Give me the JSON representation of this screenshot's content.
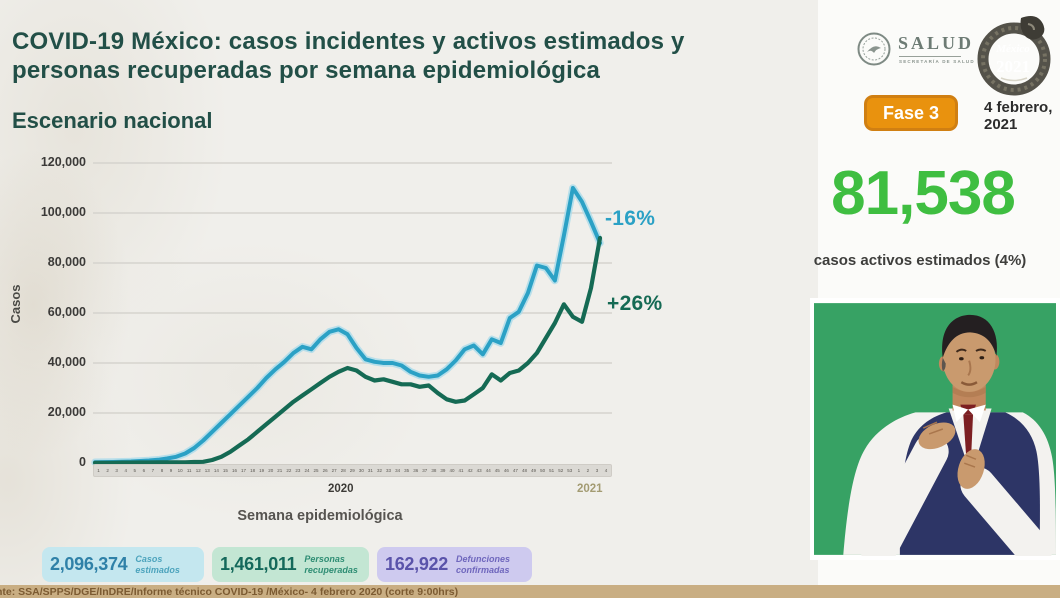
{
  "header": {
    "title_line1": "COVID-19 México: casos incidentes y activos estimados y",
    "title_line2": "personas recuperadas por semana epidemiológica",
    "subtitle": "Escenario nacional"
  },
  "top_right": {
    "salud_wordmark": "SALUD",
    "salud_subtext": "SECRETARÍA DE SALUD",
    "mexico_script": "México",
    "mexico_year": "2021",
    "fase_badge": "Fase 3",
    "date_line1": "4 febrero,",
    "date_line2": "2021"
  },
  "kpi": {
    "value": "81,538",
    "caption": "casos activos estimados (4%)",
    "value_color": "#3fbe41"
  },
  "chart_data": {
    "type": "line",
    "title": "COVID-19 México: casos incidentes y activos estimados y personas recuperadas por semana epidemiológica",
    "subtitle": "Escenario nacional",
    "xlabel": "Semana epidemiológica",
    "ylabel": "Casos",
    "ylim": [
      0,
      120000
    ],
    "grid": "horizontal",
    "legend": "none",
    "y_ticks": [
      "120,000",
      "100,000",
      "80,000",
      "60,000",
      "40,000",
      "20,000",
      "0"
    ],
    "y_grid_values": [
      20000,
      40000,
      60000,
      80000,
      100000,
      120000
    ],
    "year_markers": {
      "y2020": "2020",
      "y2021": "2021"
    },
    "x": [
      "1",
      "2",
      "3",
      "4",
      "5",
      "6",
      "7",
      "8",
      "9",
      "10",
      "11",
      "12",
      "13",
      "14",
      "15",
      "16",
      "17",
      "18",
      "19",
      "20",
      "21",
      "22",
      "23",
      "24",
      "25",
      "26",
      "27",
      "28",
      "29",
      "30",
      "31",
      "32",
      "33",
      "34",
      "35",
      "36",
      "37",
      "38",
      "39",
      "40",
      "41",
      "42",
      "43",
      "44",
      "45",
      "46",
      "47",
      "48",
      "49",
      "50",
      "51",
      "52",
      "53",
      "1",
      "2",
      "3",
      "4"
    ],
    "series": [
      {
        "name": "Casos estimados",
        "color": "#2ba1c5",
        "halo": "#aedcea",
        "values": [
          300,
          350,
          400,
          500,
          600,
          800,
          1000,
          1300,
          1800,
          2500,
          3800,
          6000,
          9000,
          12500,
          16000,
          19500,
          23000,
          26500,
          30000,
          34000,
          37500,
          40500,
          44000,
          46500,
          45500,
          49500,
          52500,
          53500,
          51500,
          46000,
          41500,
          40500,
          40000,
          40000,
          39000,
          36500,
          35000,
          34500,
          35000,
          37500,
          41000,
          45500,
          47000,
          43500,
          49500,
          48000,
          58000,
          60500,
          68000,
          79000,
          78000,
          73000,
          91000,
          110000,
          104500,
          96500,
          88000
        ]
      },
      {
        "name": "Personas recuperadas",
        "color": "#156a54",
        "values": [
          100,
          100,
          100,
          150,
          150,
          200,
          200,
          250,
          250,
          300,
          300,
          400,
          500,
          1200,
          2500,
          4500,
          7000,
          9500,
          12500,
          15500,
          18500,
          21500,
          24500,
          27000,
          29500,
          32000,
          34500,
          36500,
          38000,
          37000,
          34500,
          33000,
          33500,
          32500,
          31500,
          31500,
          30500,
          31000,
          28000,
          25500,
          24500,
          25000,
          27500,
          30000,
          35500,
          33000,
          36000,
          37000,
          40000,
          44000,
          50000,
          56000,
          63500,
          58500,
          56500,
          70000,
          90000
        ]
      }
    ],
    "annotations": [
      {
        "text": "-16%",
        "color": "#2ba1c5",
        "series": "Casos estimados"
      },
      {
        "text": "+26%",
        "color": "#156a54",
        "series": "Personas recuperadas"
      }
    ]
  },
  "badges": [
    {
      "value": "2,096,374",
      "label_line1": "Casos",
      "label_line2": "estimados",
      "bg": "#c4e7ef",
      "value_color": "#2f81a8",
      "label_color": "#4da4bd"
    },
    {
      "value": "1,461,011",
      "label_line1": "Personas",
      "label_line2": "recuperadas",
      "bg": "#c3e6d3",
      "value_color": "#14695b",
      "label_color": "#2f8e74"
    },
    {
      "value": "162,922",
      "label_line1": "Defunciones",
      "label_line2": "confirmadas",
      "bg": "#cecaef",
      "value_color": "#5a53aa",
      "label_color": "#6f67bd"
    }
  ],
  "footer": {
    "source": "nte: SSA/SPPS/DGE/InDRE/Informe técnico COVID-19 /México- 4 febrero 2020 (corte 9:00hrs)"
  }
}
